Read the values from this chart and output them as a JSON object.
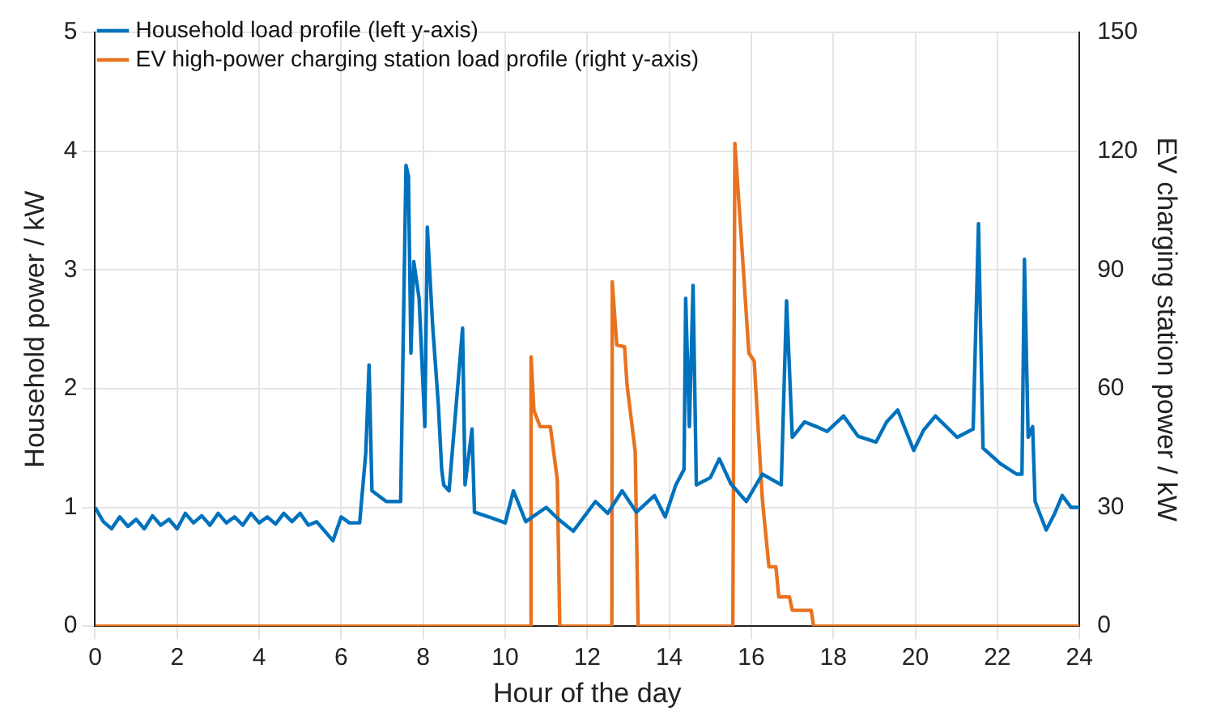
{
  "chart_data": {
    "type": "line",
    "xlabel": "Hour of the day",
    "ylabel": "Household power / kW",
    "y2label": "EV charging station power / kW",
    "legend": "top left",
    "grid": true,
    "marker": "none",
    "line_style": "solid",
    "xlim": [
      0,
      24
    ],
    "xticks": [
      0,
      2,
      4,
      6,
      8,
      10,
      12,
      14,
      16,
      18,
      20,
      22,
      24
    ],
    "ylim": [
      0,
      5
    ],
    "yticks": [
      0,
      1,
      2,
      3,
      4,
      5
    ],
    "y2lim": [
      0,
      150
    ],
    "y2ticks": [
      0,
      30,
      60,
      90,
      120,
      150
    ],
    "series": [
      {
        "name": "Household load profile (left y-axis)",
        "color": "#0072bd",
        "x": [
          0,
          0.2,
          0.4,
          0.6,
          0.8,
          1.0,
          1.2,
          1.4,
          1.6,
          1.8,
          2.0,
          2.2,
          2.4,
          2.6,
          2.8,
          3.0,
          3.2,
          3.4,
          3.6,
          3.8,
          4.0,
          4.2,
          4.4,
          4.6,
          4.8,
          5.0,
          5.2,
          5.4,
          5.6,
          5.8,
          6.0,
          6.2,
          6.45,
          6.6,
          6.68,
          6.75,
          7.1,
          7.45,
          7.58,
          7.64,
          7.7,
          7.77,
          7.9,
          8.04,
          8.1,
          8.23,
          8.37,
          8.45,
          8.5,
          8.63,
          8.96,
          9.02,
          9.19,
          9.25,
          9.6,
          10.0,
          10.2,
          10.5,
          11.0,
          11.3,
          11.66,
          12.2,
          12.5,
          12.85,
          13.2,
          13.64,
          13.9,
          14.16,
          14.36,
          14.4,
          14.49,
          14.58,
          14.66,
          15.0,
          15.22,
          15.5,
          15.88,
          16.27,
          16.73,
          16.86,
          17.0,
          17.3,
          17.59,
          17.85,
          18.25,
          18.6,
          19.04,
          19.3,
          19.57,
          19.96,
          20.2,
          20.49,
          21.02,
          21.41,
          21.54,
          21.65,
          22.07,
          22.47,
          22.6,
          22.66,
          22.75,
          22.86,
          22.92,
          23.19,
          23.4,
          23.58,
          23.8,
          24
        ],
        "values": [
          1.0,
          0.88,
          0.82,
          0.92,
          0.84,
          0.9,
          0.82,
          0.93,
          0.85,
          0.9,
          0.82,
          0.95,
          0.87,
          0.93,
          0.85,
          0.95,
          0.87,
          0.92,
          0.85,
          0.95,
          0.87,
          0.92,
          0.86,
          0.95,
          0.88,
          0.95,
          0.85,
          0.88,
          0.8,
          0.72,
          0.92,
          0.87,
          0.87,
          1.46,
          2.2,
          1.14,
          1.05,
          1.05,
          3.88,
          3.79,
          2.3,
          3.07,
          2.76,
          1.68,
          3.36,
          2.53,
          1.86,
          1.32,
          1.19,
          1.14,
          2.51,
          1.19,
          1.66,
          0.96,
          0.92,
          0.87,
          1.14,
          0.88,
          1.0,
          0.9,
          0.8,
          1.05,
          0.95,
          1.14,
          0.96,
          1.1,
          0.92,
          1.19,
          1.32,
          2.76,
          1.68,
          2.87,
          1.19,
          1.25,
          1.41,
          1.2,
          1.05,
          1.28,
          1.19,
          2.74,
          1.59,
          1.72,
          1.68,
          1.64,
          1.77,
          1.6,
          1.55,
          1.72,
          1.82,
          1.48,
          1.65,
          1.77,
          1.59,
          1.66,
          3.39,
          1.5,
          1.37,
          1.28,
          1.28,
          3.09,
          1.59,
          1.68,
          1.05,
          0.81,
          0.95,
          1.1,
          1.0,
          1.0
        ]
      },
      {
        "name": "EV high-power charging station load profile (right y-axis)",
        "color": "#e8731f",
        "axis": "y2",
        "x": [
          0,
          10.6,
          10.63,
          10.7,
          10.85,
          11.1,
          11.27,
          11.33,
          12.6,
          12.61,
          12.72,
          12.91,
          12.97,
          13.17,
          13.24,
          15.55,
          15.6,
          15.75,
          15.94,
          16.07,
          16.27,
          16.43,
          16.6,
          16.67,
          16.93,
          17.0,
          17.46,
          17.52,
          24
        ],
        "values": [
          0,
          0,
          68,
          54.5,
          50.4,
          50.4,
          37,
          0,
          0,
          87,
          71,
          70.6,
          61,
          44,
          0,
          0,
          122,
          99,
          69,
          67,
          32,
          15,
          15,
          7.4,
          7.4,
          4,
          4,
          0,
          0
        ]
      }
    ]
  }
}
